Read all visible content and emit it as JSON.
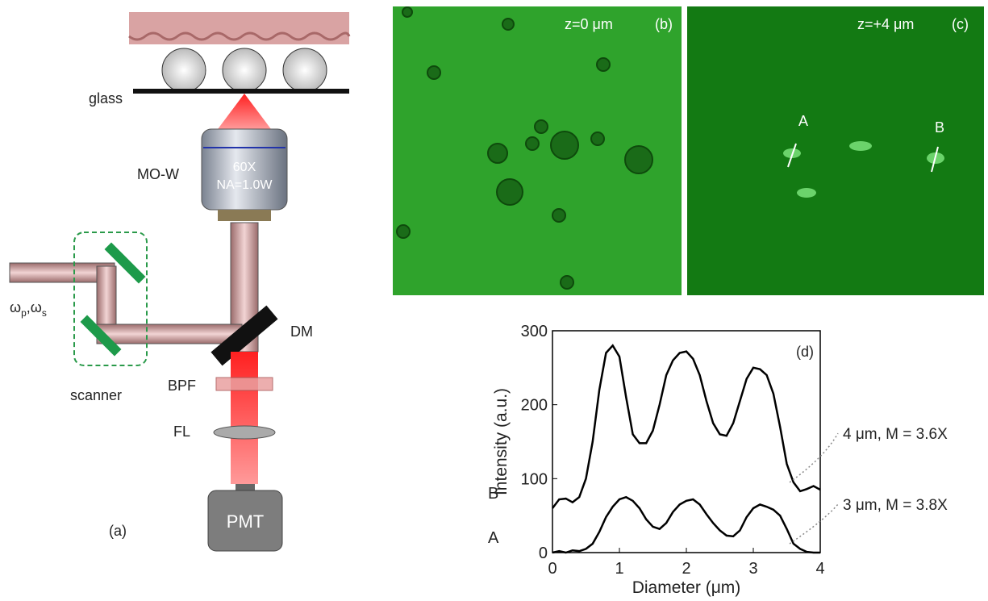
{
  "diagram": {
    "label": "(a)",
    "glass": "glass",
    "objective": "MO-W",
    "magnification": "60X",
    "na": "NA=1.0W",
    "beam_label": [
      "ω",
      "p",
      ",ω",
      "s"
    ],
    "dm": "DM",
    "bpf": "BPF",
    "fl": "FL",
    "pmt": "PMT",
    "scanner": "scanner"
  },
  "images": [
    {
      "depth": "z=0 μm",
      "label": "(b)"
    },
    {
      "depth": "z=+4 μm",
      "label": "(c)",
      "markers": [
        "A",
        "B"
      ]
    }
  ],
  "chart_data": {
    "type": "line",
    "label": "(d)",
    "xlabel": "Diameter (μm)",
    "ylabel": "Intensity (a.u.)",
    "xlim": [
      0,
      4
    ],
    "ylim": [
      0,
      300
    ],
    "xticks": [
      0,
      1,
      2,
      3,
      4
    ],
    "yticks": [
      0,
      100,
      200,
      300
    ],
    "x": [
      0,
      0.1,
      0.2,
      0.3,
      0.4,
      0.5,
      0.6,
      0.7,
      0.8,
      0.9,
      1.0,
      1.1,
      1.2,
      1.3,
      1.4,
      1.5,
      1.6,
      1.7,
      1.8,
      1.9,
      2.0,
      2.1,
      2.2,
      2.3,
      2.4,
      2.5,
      2.6,
      2.7,
      2.8,
      2.9,
      3.0,
      3.1,
      3.2,
      3.3,
      3.4,
      3.5,
      3.6,
      3.7,
      3.8,
      3.9,
      4.0
    ],
    "series": [
      {
        "name": "B",
        "color": "#000000",
        "annotation": "4 μm, M = 3.6X",
        "values": [
          60,
          72,
          73,
          68,
          75,
          100,
          150,
          220,
          270,
          280,
          265,
          210,
          160,
          148,
          148,
          165,
          200,
          240,
          260,
          270,
          272,
          262,
          240,
          205,
          175,
          160,
          158,
          175,
          205,
          235,
          250,
          248,
          240,
          215,
          170,
          120,
          95,
          83,
          86,
          90,
          85
        ]
      },
      {
        "name": "A",
        "color": "#000000",
        "annotation": "3 μm, M = 3.8X",
        "values": [
          0,
          2,
          0,
          3,
          2,
          5,
          12,
          28,
          48,
          62,
          72,
          75,
          70,
          60,
          45,
          35,
          32,
          40,
          55,
          65,
          70,
          72,
          65,
          52,
          40,
          30,
          23,
          22,
          30,
          48,
          60,
          65,
          62,
          58,
          50,
          32,
          12,
          5,
          1,
          0,
          0
        ]
      }
    ]
  }
}
